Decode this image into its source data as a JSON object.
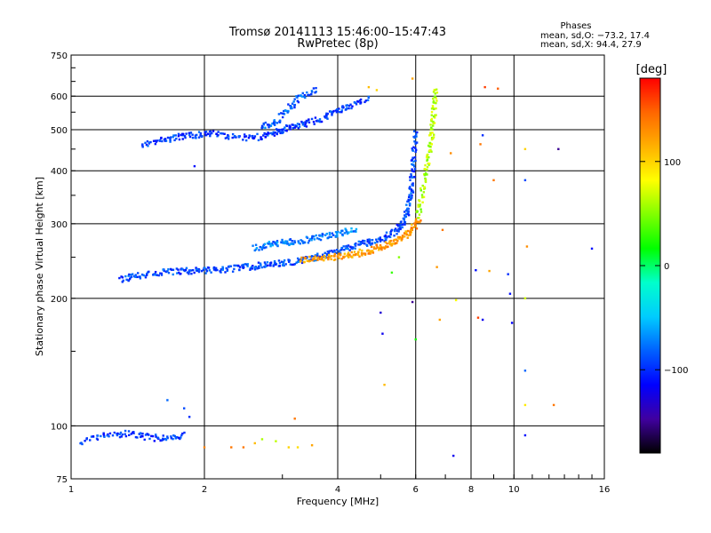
{
  "chart_data": {
    "type": "scatter",
    "title": "Tromsø 20141113 15:46:00–15:47:43",
    "subtitle": "RwPretec (8p)",
    "xlabel": "Frequency [MHz]",
    "ylabel": "Stationary phase Virtual Height [km]",
    "x_scale": "log",
    "y_scale": "log",
    "xlim": [
      1,
      16
    ],
    "ylim": [
      75,
      750
    ],
    "x_ticks": [
      1,
      2,
      4,
      6,
      8,
      10,
      16
    ],
    "x_tick_labels": [
      "1",
      "2",
      "4",
      "6",
      "8",
      "10",
      "16"
    ],
    "y_ticks": [
      75,
      100,
      200,
      300,
      400,
      500,
      600,
      750
    ],
    "y_tick_labels": [
      "75",
      "100",
      "200",
      "300",
      "400",
      "500",
      "600",
      "750"
    ],
    "grid": true,
    "stats": {
      "heading": "Phases",
      "line_o": "mean, sd,O: −73.2, 17.4",
      "line_x": "mean, sd,X:  94.4, 27.9"
    },
    "colorbar": {
      "label": "[deg]",
      "range": [
        -180,
        180
      ],
      "ticks": [
        100,
        0,
        -100
      ],
      "tick_labels": [
        "100",
        "0",
        "−100"
      ],
      "colors": [
        "#ff0000",
        "#ff6600",
        "#ffb000",
        "#ffff00",
        "#80ff00",
        "#00ff00",
        "#00ffcc",
        "#00ccff",
        "#0060ff",
        "#0000ff",
        "#4000a0",
        "#000000"
      ]
    },
    "traces": [
      {
        "x": [
          1.45,
          1.6,
          1.75,
          1.9,
          2.05,
          2.3,
          2.6,
          2.85,
          3.0,
          3.2,
          3.45,
          3.75,
          4.0,
          4.3,
          4.7
        ],
        "y": [
          460,
          472,
          480,
          485,
          490,
          482,
          478,
          488,
          498,
          510,
          520,
          535,
          555,
          570,
          590
        ],
        "phase": -95
      },
      {
        "x": [
          2.7,
          2.9,
          3.1,
          3.3,
          3.6
        ],
        "y": [
          510,
          520,
          560,
          600,
          620
        ],
        "phase": -85
      },
      {
        "x": [
          1.3,
          1.4,
          1.55,
          1.7,
          1.85,
          2.0,
          2.2,
          2.4,
          2.6,
          2.8,
          3.0,
          3.3,
          3.6,
          3.9,
          4.2,
          4.5,
          4.8,
          5.1,
          5.4,
          5.6,
          5.75,
          5.85,
          5.9,
          5.95,
          6.0
        ],
        "y": [
          222,
          226,
          229,
          231,
          232,
          233,
          234,
          236,
          238,
          240,
          242,
          245,
          250,
          255,
          262,
          268,
          272,
          278,
          288,
          300,
          320,
          350,
          390,
          440,
          500
        ],
        "phase": -90
      },
      {
        "x": [
          2.6,
          2.8,
          3.0,
          3.2,
          3.5,
          3.8,
          4.1,
          4.4
        ],
        "y": [
          262,
          268,
          270,
          272,
          276,
          281,
          286,
          292
        ],
        "phase": -75
      },
      {
        "x": [
          3.3,
          3.6,
          3.9,
          4.2,
          4.5,
          4.8,
          5.1,
          5.4,
          5.7,
          5.9,
          6.1
        ],
        "y": [
          246,
          248,
          250,
          252,
          256,
          260,
          266,
          272,
          282,
          292,
          306
        ],
        "phase": 125
      },
      {
        "x": [
          6.05,
          6.2,
          6.35,
          6.45,
          6.55,
          6.6,
          6.65
        ],
        "y": [
          310,
          350,
          400,
          450,
          500,
          560,
          630
        ],
        "phase": 60
      },
      {
        "x": [
          1.05,
          1.2,
          1.35,
          1.5,
          1.65,
          1.8
        ],
        "y": [
          92,
          95,
          96,
          94,
          93,
          95
        ],
        "phase": -95
      }
    ],
    "scattered_points": [
      {
        "x": 2.0,
        "y": 89,
        "phase": 135
      },
      {
        "x": 2.3,
        "y": 89,
        "phase": 140
      },
      {
        "x": 2.45,
        "y": 89,
        "phase": 140
      },
      {
        "x": 2.6,
        "y": 91,
        "phase": 110
      },
      {
        "x": 2.7,
        "y": 93,
        "phase": 60
      },
      {
        "x": 2.9,
        "y": 92,
        "phase": 65
      },
      {
        "x": 3.1,
        "y": 89,
        "phase": 100
      },
      {
        "x": 3.25,
        "y": 89,
        "phase": 95
      },
      {
        "x": 3.5,
        "y": 90,
        "phase": 120
      },
      {
        "x": 3.2,
        "y": 104,
        "phase": 140
      },
      {
        "x": 5.0,
        "y": 185,
        "phase": -130
      },
      {
        "x": 5.05,
        "y": 165,
        "phase": -120
      },
      {
        "x": 5.1,
        "y": 125,
        "phase": 110
      },
      {
        "x": 5.9,
        "y": 196,
        "phase": -150
      },
      {
        "x": 6.0,
        "y": 160,
        "phase": 20
      },
      {
        "x": 6.7,
        "y": 237,
        "phase": 125
      },
      {
        "x": 6.8,
        "y": 178,
        "phase": 120
      },
      {
        "x": 6.9,
        "y": 290,
        "phase": 140
      },
      {
        "x": 7.3,
        "y": 85,
        "phase": -120
      },
      {
        "x": 7.4,
        "y": 198,
        "phase": 80
      },
      {
        "x": 8.3,
        "y": 180,
        "phase": 160
      },
      {
        "x": 8.5,
        "y": 178,
        "phase": -120
      },
      {
        "x": 8.2,
        "y": 233,
        "phase": -110
      },
      {
        "x": 8.4,
        "y": 462,
        "phase": 140
      },
      {
        "x": 8.5,
        "y": 485,
        "phase": -100
      },
      {
        "x": 8.6,
        "y": 630,
        "phase": 160
      },
      {
        "x": 9.2,
        "y": 625,
        "phase": 150
      },
      {
        "x": 9.0,
        "y": 380,
        "phase": 140
      },
      {
        "x": 8.8,
        "y": 232,
        "phase": 120
      },
      {
        "x": 9.7,
        "y": 228,
        "phase": -100
      },
      {
        "x": 9.8,
        "y": 205,
        "phase": -110
      },
      {
        "x": 9.9,
        "y": 175,
        "phase": -115
      },
      {
        "x": 10.6,
        "y": 450,
        "phase": 100
      },
      {
        "x": 10.6,
        "y": 380,
        "phase": -90
      },
      {
        "x": 10.7,
        "y": 265,
        "phase": 130
      },
      {
        "x": 10.6,
        "y": 200,
        "phase": 70
      },
      {
        "x": 10.6,
        "y": 135,
        "phase": -80
      },
      {
        "x": 10.6,
        "y": 112,
        "phase": 90
      },
      {
        "x": 10.6,
        "y": 95,
        "phase": -110
      },
      {
        "x": 12.3,
        "y": 112,
        "phase": 140
      },
      {
        "x": 12.6,
        "y": 450,
        "phase": -150
      },
      {
        "x": 15.0,
        "y": 262,
        "phase": -110
      },
      {
        "x": 1.9,
        "y": 410,
        "phase": -110
      },
      {
        "x": 1.8,
        "y": 110,
        "phase": -90
      },
      {
        "x": 1.65,
        "y": 115,
        "phase": -80
      },
      {
        "x": 1.85,
        "y": 105,
        "phase": -100
      },
      {
        "x": 4.7,
        "y": 630,
        "phase": 110
      },
      {
        "x": 4.9,
        "y": 620,
        "phase": 100
      },
      {
        "x": 5.9,
        "y": 660,
        "phase": 120
      },
      {
        "x": 5.3,
        "y": 230,
        "phase": 30
      },
      {
        "x": 5.5,
        "y": 250,
        "phase": 50
      },
      {
        "x": 7.2,
        "y": 440,
        "phase": 130
      }
    ]
  }
}
